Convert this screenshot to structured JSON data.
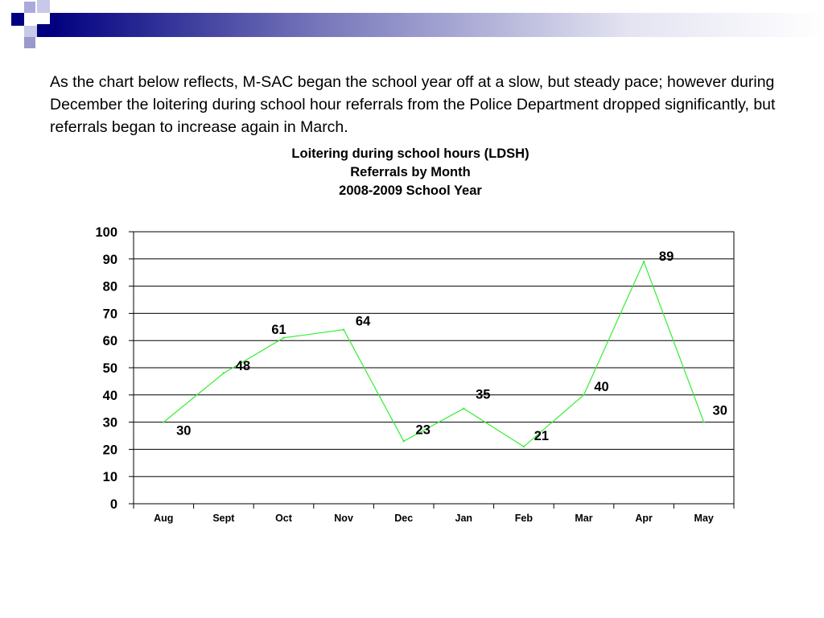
{
  "slide": {
    "body_text": "As the chart below reflects, M-SAC began the school year off at a slow, but steady pace; however during December the loitering during school hour referrals from the Police Department dropped significantly, but referrals began to increase again in March.",
    "colors": {
      "accent_dark": "#000080",
      "accent_light": "#9999cc",
      "bar_gradient_start": "#000080",
      "bar_gradient_end": "#ffffff"
    }
  },
  "chart_data": {
    "type": "line",
    "title_lines": [
      "Loitering during school hours (LDSH)",
      "Referrals by Month",
      "2008-2009 School Year"
    ],
    "categories": [
      "Aug",
      "Sept",
      "Oct",
      "Nov",
      "Dec",
      "Jan",
      "Feb",
      "Mar",
      "Apr",
      "May"
    ],
    "series": [
      {
        "values": [
          30,
          48,
          61,
          64,
          23,
          35,
          21,
          40,
          89,
          30
        ],
        "color": "#33ee33"
      }
    ],
    "data_labels": [
      "30",
      "48",
      "61",
      "64",
      "23",
      "35",
      "21",
      "40",
      "89",
      "30"
    ],
    "ylim": [
      0,
      100
    ],
    "yticks": [
      0,
      10,
      20,
      30,
      40,
      50,
      60,
      70,
      80,
      90,
      100
    ],
    "xlabel": "",
    "ylabel": "",
    "grid": true,
    "legend": "none"
  }
}
